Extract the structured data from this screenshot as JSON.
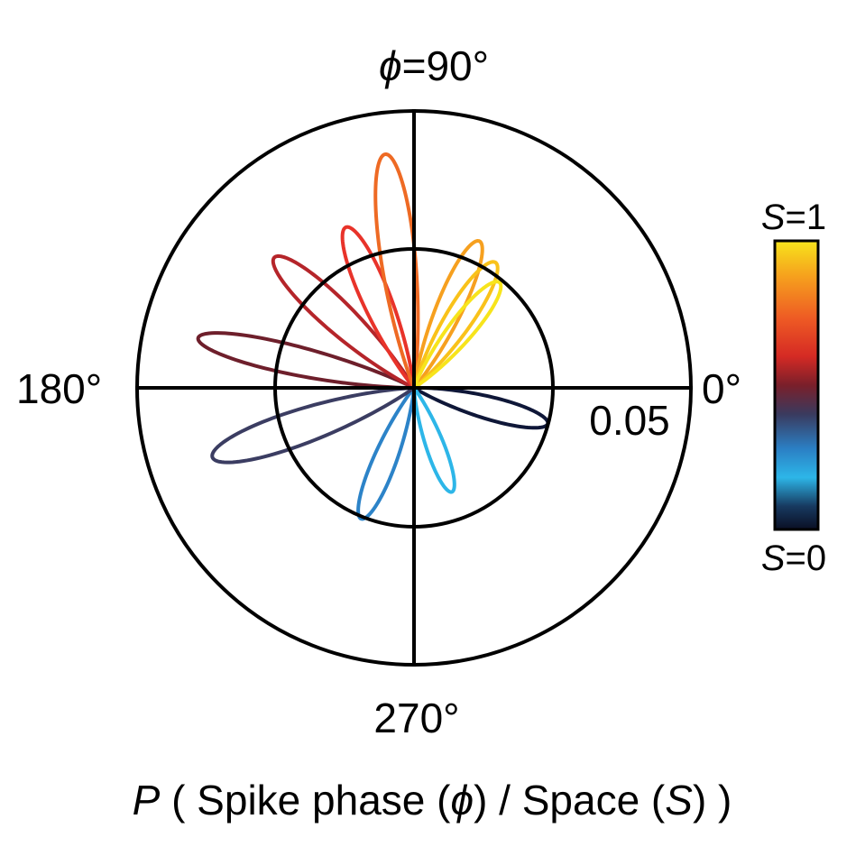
{
  "chart_data": {
    "type": "polar-line",
    "angle_labels": {
      "deg0": "0°",
      "deg90": "=90°",
      "deg90_symbol": "ϕ",
      "deg180": "180°",
      "deg270": "270°"
    },
    "radial_tick_label": "0.05",
    "radial_ticks": [
      0.05,
      0.1
    ],
    "r_max": 0.1,
    "xlabel": {
      "p": "P",
      "part1": " ( Spike phase (",
      "phi": "ϕ",
      "part2": ") / Space (",
      "s": "S",
      "part3": ") )"
    },
    "colorbar": {
      "label_top_s": "S",
      "label_top_rest": "=1",
      "label_bottom_s": "S",
      "label_bottom_rest": "=0",
      "stops": [
        {
          "offset": 0.0,
          "color": "#f7e41c"
        },
        {
          "offset": 0.12,
          "color": "#f6a21d"
        },
        {
          "offset": 0.27,
          "color": "#ee5a24"
        },
        {
          "offset": 0.4,
          "color": "#d52a24"
        },
        {
          "offset": 0.5,
          "color": "#7a1f2a"
        },
        {
          "offset": 0.6,
          "color": "#3a3a5e"
        },
        {
          "offset": 0.72,
          "color": "#2b7fc4"
        },
        {
          "offset": 0.82,
          "color": "#2db6e8"
        },
        {
          "offset": 0.92,
          "color": "#17395f"
        },
        {
          "offset": 1.0,
          "color": "#0a0f24"
        }
      ]
    },
    "series": [
      {
        "s": 0.0,
        "peak_angle_deg": 345,
        "peak_r": 0.05,
        "width": 0.1,
        "color": "#0f1738"
      },
      {
        "s": 0.12,
        "peak_angle_deg": 290,
        "peak_r": 0.04,
        "width": 0.1,
        "color": "#2db6e8"
      },
      {
        "s": 0.25,
        "peak_angle_deg": 248,
        "peak_r": 0.051,
        "width": 0.1,
        "color": "#2c83c8"
      },
      {
        "s": 0.38,
        "peak_angle_deg": 199,
        "peak_r": 0.077,
        "width": 0.1,
        "color": "#3b3d62"
      },
      {
        "s": 0.5,
        "peak_angle_deg": 167,
        "peak_r": 0.08,
        "width": 0.08,
        "color": "#6e1f2b"
      },
      {
        "s": 0.62,
        "peak_angle_deg": 137,
        "peak_r": 0.069,
        "width": 0.1,
        "color": "#b5252a"
      },
      {
        "s": 0.72,
        "peak_angle_deg": 113,
        "peak_r": 0.063,
        "width": 0.1,
        "color": "#e8332a"
      },
      {
        "s": 0.8,
        "peak_angle_deg": 97,
        "peak_r": 0.085,
        "width": 0.09,
        "color": "#ee6a24"
      },
      {
        "s": 0.88,
        "peak_angle_deg": 66,
        "peak_r": 0.058,
        "width": 0.1,
        "color": "#f6a01f"
      },
      {
        "s": 0.94,
        "peak_angle_deg": 57,
        "peak_r": 0.054,
        "width": 0.11,
        "color": "#f9c21a"
      },
      {
        "s": 1.0,
        "peak_angle_deg": 51,
        "peak_r": 0.049,
        "width": 0.11,
        "color": "#f7e41c"
      }
    ]
  }
}
